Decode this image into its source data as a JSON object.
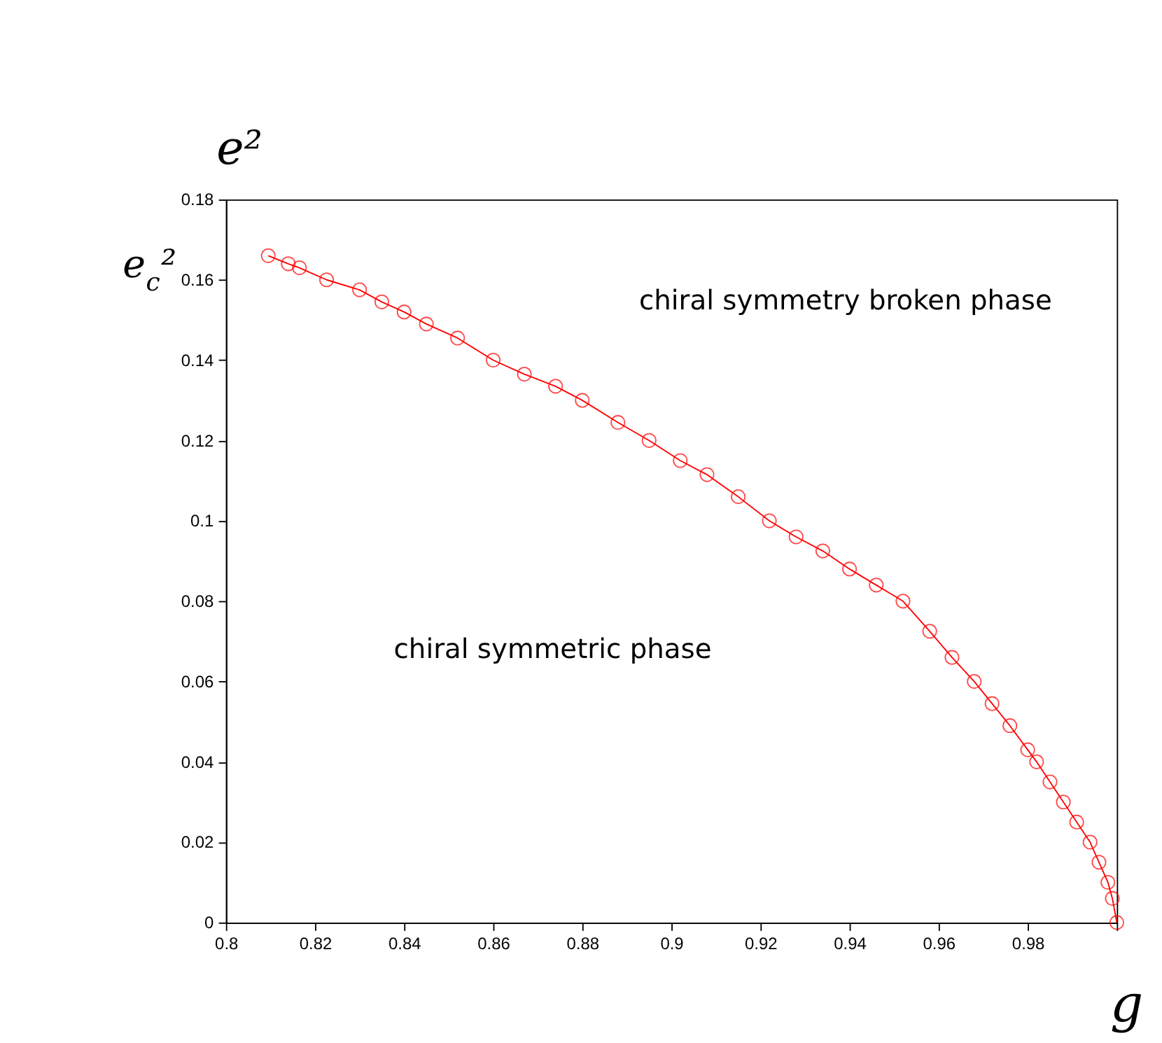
{
  "chart_data": {
    "type": "line",
    "ylabel": "e²",
    "xlabel": "g",
    "annotations": [
      "e$_{c}$²",
      "chiral symmetry broken phase",
      "chiral symmetric phase"
    ],
    "x": [
      0.8095,
      0.814,
      0.8165,
      0.8226,
      0.83,
      0.835,
      0.84,
      0.845,
      0.852,
      0.86,
      0.867,
      0.874,
      0.88,
      0.888,
      0.895,
      0.902,
      0.908,
      0.915,
      0.922,
      0.928,
      0.934,
      0.94,
      0.946,
      0.952,
      0.958,
      0.963,
      0.968,
      0.972,
      0.976,
      0.98,
      0.982,
      0.985,
      0.988,
      0.991,
      0.994,
      0.996,
      0.998,
      0.999,
      1.0
    ],
    "series": [
      {
        "color": "#ff0000",
        "values": [
          0.166,
          0.164,
          0.163,
          0.16,
          0.1575,
          0.1545,
          0.152,
          0.149,
          0.1455,
          0.14,
          0.1365,
          0.1335,
          0.13,
          0.1245,
          0.12,
          0.115,
          0.1115,
          0.106,
          0.1,
          0.096,
          0.0925,
          0.088,
          0.084,
          0.08,
          0.0725,
          0.066,
          0.06,
          0.0545,
          0.049,
          0.043,
          0.04,
          0.035,
          0.03,
          0.025,
          0.02,
          0.015,
          0.01,
          0.006,
          0.0
        ]
      }
    ],
    "xlim": [
      0.8,
      1.0
    ],
    "ylim": [
      0,
      0.18
    ],
    "xticks": [
      0.8,
      0.82,
      0.84,
      0.86,
      0.88,
      0.9,
      0.92,
      0.94,
      0.96,
      0.98,
      {
        "value": 1.0,
        "label": null
      }
    ],
    "yticks": [
      0,
      0.02,
      0.04,
      0.06,
      0.08,
      0.1,
      0.12,
      0.14,
      0.16,
      0.18
    ],
    "marker": "circle",
    "line_style": "solid",
    "grid": false
  }
}
